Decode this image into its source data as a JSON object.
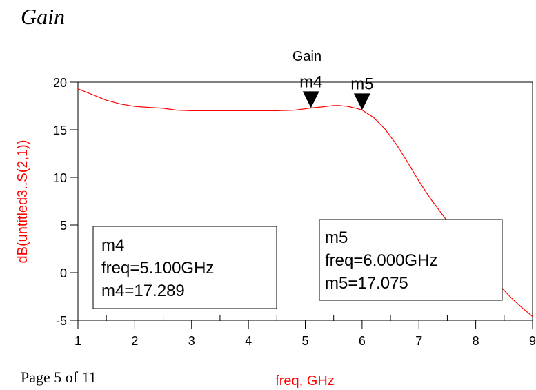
{
  "page": {
    "heading": "Gain",
    "footer": "Page 5 of 11"
  },
  "chart_data": {
    "type": "line",
    "title": "Gain",
    "xlabel": "freq, GHz",
    "ylabel": "dB(untitled3..S(2,1))",
    "xlim": [
      1,
      9
    ],
    "ylim": [
      -5,
      20
    ],
    "x_ticks": [
      "1",
      "2",
      "3",
      "4",
      "5",
      "6",
      "7",
      "8",
      "9"
    ],
    "y_ticks": [
      "20",
      "15",
      "10",
      "5",
      "0",
      "-5"
    ],
    "grid": false,
    "colors": {
      "trace": "#ff0000",
      "axis_labels": "#ff0000",
      "frame": "#000000"
    },
    "series": [
      {
        "x": [
          1.0,
          1.25,
          1.5,
          1.75,
          2.0,
          2.25,
          2.5,
          2.75,
          3.0,
          3.5,
          4.0,
          4.5,
          4.8,
          5.0,
          5.1,
          5.3,
          5.5,
          5.6,
          5.75,
          5.9,
          6.0,
          6.2,
          6.4,
          6.6,
          6.8,
          7.0,
          7.2,
          7.4,
          7.6,
          7.8,
          8.0,
          8.2,
          8.4,
          8.6,
          8.8,
          9.0
        ],
        "y": [
          19.3,
          18.7,
          18.1,
          17.7,
          17.45,
          17.35,
          17.25,
          17.05,
          17.0,
          17.0,
          17.0,
          17.0,
          17.05,
          17.2,
          17.289,
          17.4,
          17.55,
          17.55,
          17.45,
          17.25,
          17.075,
          16.3,
          15.1,
          13.5,
          11.6,
          9.6,
          7.8,
          6.2,
          4.6,
          3.0,
          1.5,
          0.1,
          -1.2,
          -2.5,
          -3.6,
          -4.6
        ]
      }
    ],
    "markers": [
      {
        "name": "m4",
        "freq": 5.1,
        "value": 17.289,
        "freq_text": "freq=5.100GHz",
        "value_text": "m4=17.289"
      },
      {
        "name": "m5",
        "freq": 6.0,
        "value": 17.075,
        "freq_text": "freq=6.000GHz",
        "value_text": "m5=17.075"
      }
    ]
  }
}
